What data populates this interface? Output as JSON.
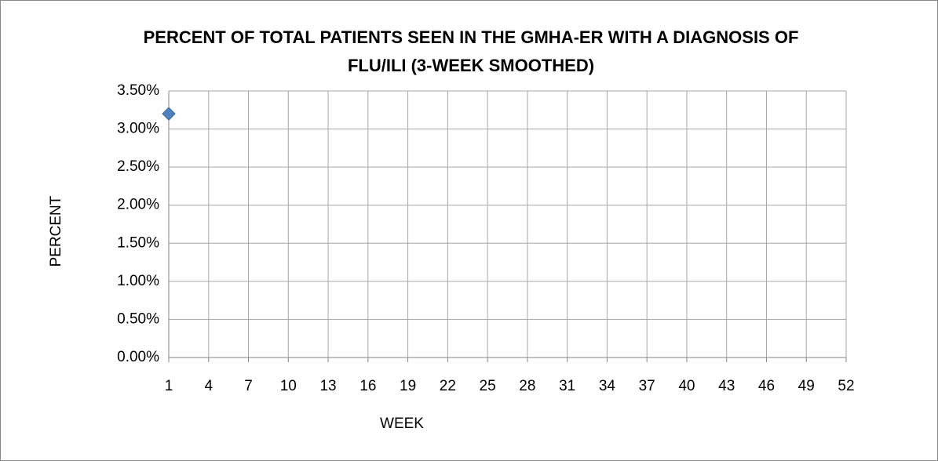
{
  "chart_data": {
    "type": "scatter",
    "title": "PERCENT OF TOTAL PATIENTS SEEN IN THE GMHA-ER WITH A DIAGNOSIS OF FLU/ILI (3-WEEK SMOOTHED)",
    "xlabel": "WEEK",
    "ylabel": "PERCENT",
    "x": [
      1
    ],
    "values": [
      3.2
    ],
    "color": "#4f81bd",
    "marker": "diamond",
    "xlim": [
      1,
      52
    ],
    "xticks": [
      1,
      4,
      7,
      10,
      13,
      16,
      19,
      22,
      25,
      28,
      31,
      34,
      37,
      40,
      43,
      46,
      49,
      52
    ],
    "ylim": [
      0,
      3.5
    ],
    "yticks": [
      {
        "value": 0,
        "label": "0.00%"
      },
      {
        "value": 0.5,
        "label": "0.50%"
      },
      {
        "value": 1,
        "label": "1.00%"
      },
      {
        "value": 1.5,
        "label": "1.50%"
      },
      {
        "value": 2,
        "label": "2.00%"
      },
      {
        "value": 2.5,
        "label": "2.50%"
      },
      {
        "value": 3,
        "label": "3.00%"
      },
      {
        "value": 3.5,
        "label": "3.50%"
      }
    ],
    "grid": true
  }
}
